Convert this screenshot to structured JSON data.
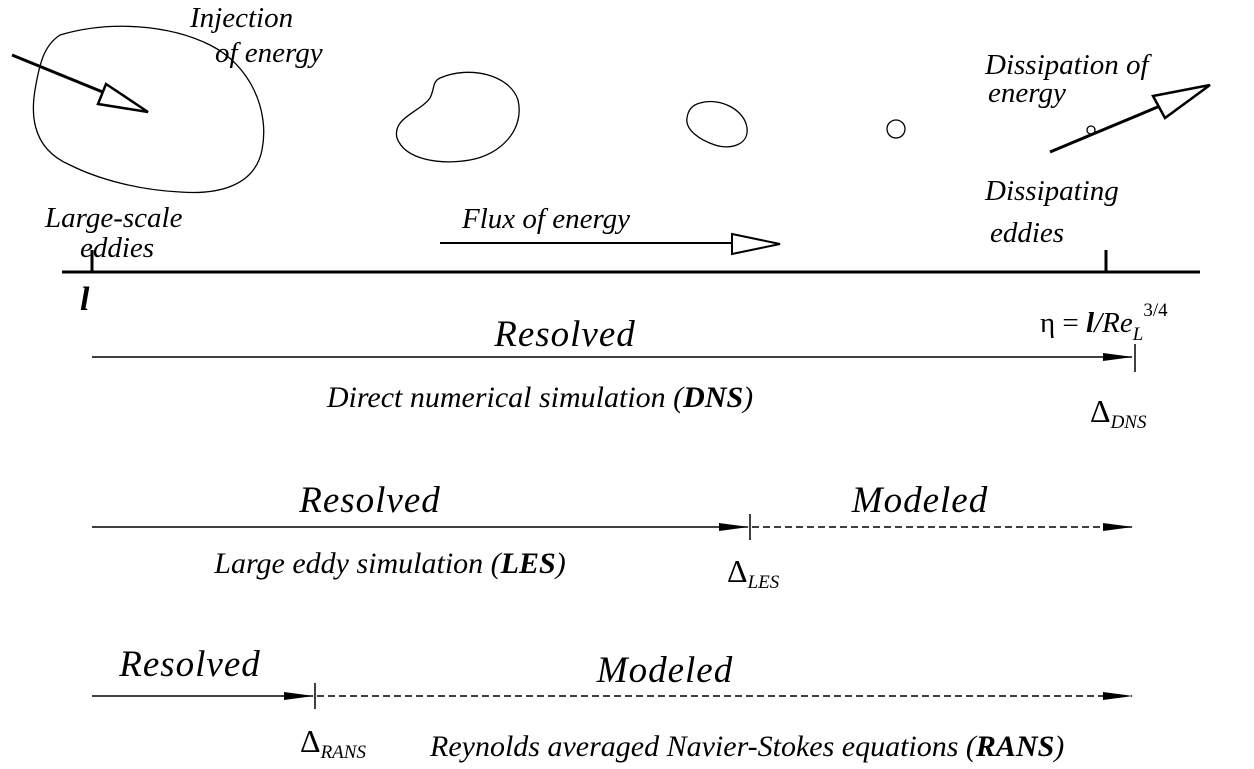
{
  "top_labels": {
    "injection": [
      "Injection",
      "of energy"
    ],
    "dissipation": [
      "Dissipation of",
      "energy"
    ],
    "large_scale": [
      "Large-scale",
      "eddies"
    ],
    "flux": "Flux of energy",
    "dissipating": [
      "Dissipating",
      "eddies"
    ]
  },
  "scale_start": "l",
  "scale_end": {
    "eta": "η = ",
    "l": "l",
    "re": "/Re",
    "sub": "L",
    "sup": "3/4"
  },
  "rows": {
    "dns": {
      "resolved": "Resolved",
      "caption": [
        "Direct numerical simulation (",
        "DNS",
        ")"
      ],
      "delta": {
        "symbol": "Δ",
        "sub": "DNS"
      }
    },
    "les": {
      "resolved": "Resolved",
      "modeled": "Modeled",
      "caption": [
        "Large eddy simulation (",
        "LES",
        ")"
      ],
      "delta": {
        "symbol": "Δ",
        "sub": "LES"
      }
    },
    "rans": {
      "resolved": "Resolved",
      "modeled": "Modeled",
      "caption": [
        "Reynolds averaged Navier-Stokes equations (",
        "RANS",
        ")"
      ],
      "delta": {
        "symbol": "Δ",
        "sub": "RANS"
      }
    }
  }
}
